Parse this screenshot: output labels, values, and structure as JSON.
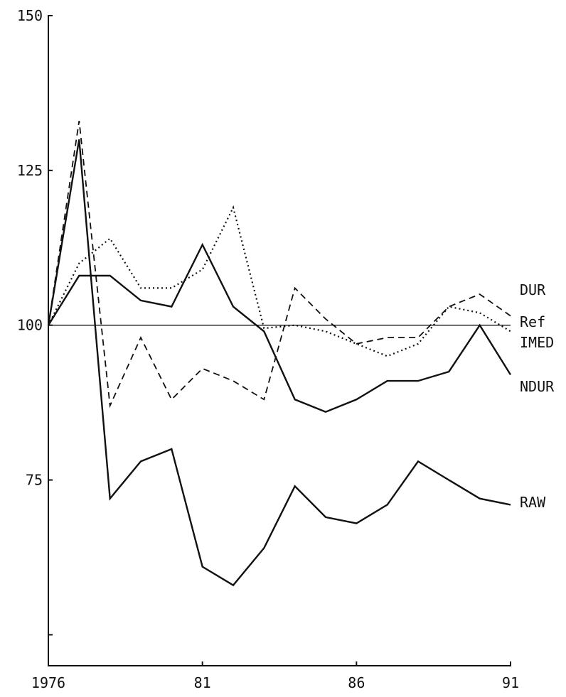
{
  "chart_data": {
    "type": "line",
    "title": "",
    "xlabel": "",
    "ylabel": "",
    "x": [
      1976,
      1977,
      1978,
      1979,
      1980,
      1981,
      1982,
      1983,
      1984,
      1985,
      1986,
      1987,
      1988,
      1989,
      1990,
      1991
    ],
    "xlim": [
      1976,
      1991
    ],
    "ylim": [
      45,
      150
    ],
    "x_ticks": [
      {
        "value": 1976,
        "label": "1976"
      },
      {
        "value": 1981,
        "label": "81"
      },
      {
        "value": 1986,
        "label": "86"
      },
      {
        "value": 1991,
        "label": "91"
      }
    ],
    "y_ticks": [
      {
        "value": 150,
        "label": "150"
      },
      {
        "value": 125,
        "label": "125"
      },
      {
        "value": 100,
        "label": "100"
      },
      {
        "value": 75,
        "label": "75"
      },
      {
        "value": 50,
        "label": ""
      }
    ],
    "grid": false,
    "series": [
      {
        "name": "DUR",
        "style": "dashed",
        "values": [
          100,
          133,
          87,
          98,
          88,
          93,
          91,
          88,
          106,
          101,
          97,
          98,
          98,
          103,
          105,
          101.5
        ]
      },
      {
        "name": "Ref",
        "style": "thin",
        "values": [
          100,
          100,
          100,
          100,
          100,
          100,
          100,
          100,
          100,
          100,
          100,
          100,
          100,
          100,
          100,
          100
        ]
      },
      {
        "name": "IMED",
        "style": "dotted",
        "values": [
          100,
          110,
          114,
          106,
          106,
          109,
          119,
          99.5,
          100,
          99,
          97,
          95,
          97,
          103,
          102,
          99
        ]
      },
      {
        "name": "NDUR",
        "style": "solid",
        "values": [
          100,
          108,
          108,
          104,
          103,
          113,
          103,
          99,
          88,
          86,
          88,
          91,
          91,
          92.5,
          100,
          92
        ]
      },
      {
        "name": "RAW",
        "style": "solid",
        "values": [
          100,
          130,
          72,
          78,
          80,
          61,
          58,
          64,
          74,
          69,
          68,
          71,
          78,
          75,
          72,
          71
        ]
      }
    ]
  }
}
